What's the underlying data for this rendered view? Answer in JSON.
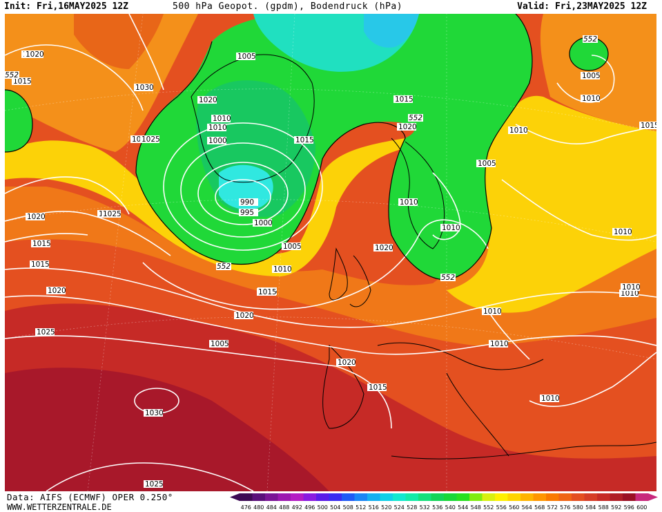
{
  "header": {
    "init": "Init: Fri,16MAY2025 12Z",
    "title": "500 hPa Geopot. (gpdm), Bodendruck (hPa)",
    "valid": "Valid: Fri,23MAY2025 12Z"
  },
  "footer": {
    "data_source": "Data: AIFS (ECMWF) OPER 0.250°",
    "url": "WWW.WETTERZENTRALE.DE"
  },
  "legend": {
    "values": [
      "476",
      "480",
      "484",
      "488",
      "492",
      "496",
      "500",
      "504",
      "508",
      "512",
      "516",
      "520",
      "524",
      "528",
      "532",
      "536",
      "540",
      "544",
      "548",
      "552",
      "556",
      "560",
      "564",
      "568",
      "572",
      "576",
      "580",
      "584",
      "588",
      "592",
      "596",
      "600"
    ],
    "colors": [
      "#3d0a54",
      "#5a0f7a",
      "#7b1496",
      "#9c18b0",
      "#b41cc4",
      "#8a1ae0",
      "#5a1be8",
      "#3a2cf0",
      "#1f5af5",
      "#1a86f5",
      "#15b0f0",
      "#10d0e8",
      "#12e8d0",
      "#14eaa8",
      "#16e07c",
      "#14d458",
      "#18d838",
      "#28e020",
      "#80ec10",
      "#d8f010",
      "#fff000",
      "#ffd400",
      "#ffb400",
      "#ff9600",
      "#fa7a00",
      "#f06414",
      "#e44e20",
      "#d63c26",
      "#c62a26",
      "#b01e26",
      "#9a1024",
      "#c8287c"
    ]
  },
  "map": {
    "pressure_labels": [
      "1020",
      "1015",
      "1030",
      "1025",
      "1005",
      "1010",
      "1015",
      "1020",
      "1025",
      "1015",
      "1020",
      "1010",
      "1005",
      "1000",
      "990",
      "995",
      "1000",
      "1005",
      "1010",
      "1015",
      "1020",
      "1025",
      "1015",
      "1020",
      "1015",
      "1020",
      "1015",
      "1020",
      "1010",
      "1005",
      "1015",
      "1010",
      "1010",
      "1010",
      "1010",
      "1005",
      "1015",
      "1010",
      "1010",
      "1010",
      "1030",
      "1025",
      "1020",
      "1015",
      "1010",
      "1025",
      "1020",
      "1010"
    ],
    "height_labels": [
      "552",
      "552",
      "552",
      "552",
      "552"
    ],
    "colors": {
      "land_lines": "#000000",
      "isobars": "#ffffff",
      "low_core": "#30f0f0",
      "trough": "#18d838",
      "ridge": "#d02818"
    }
  }
}
